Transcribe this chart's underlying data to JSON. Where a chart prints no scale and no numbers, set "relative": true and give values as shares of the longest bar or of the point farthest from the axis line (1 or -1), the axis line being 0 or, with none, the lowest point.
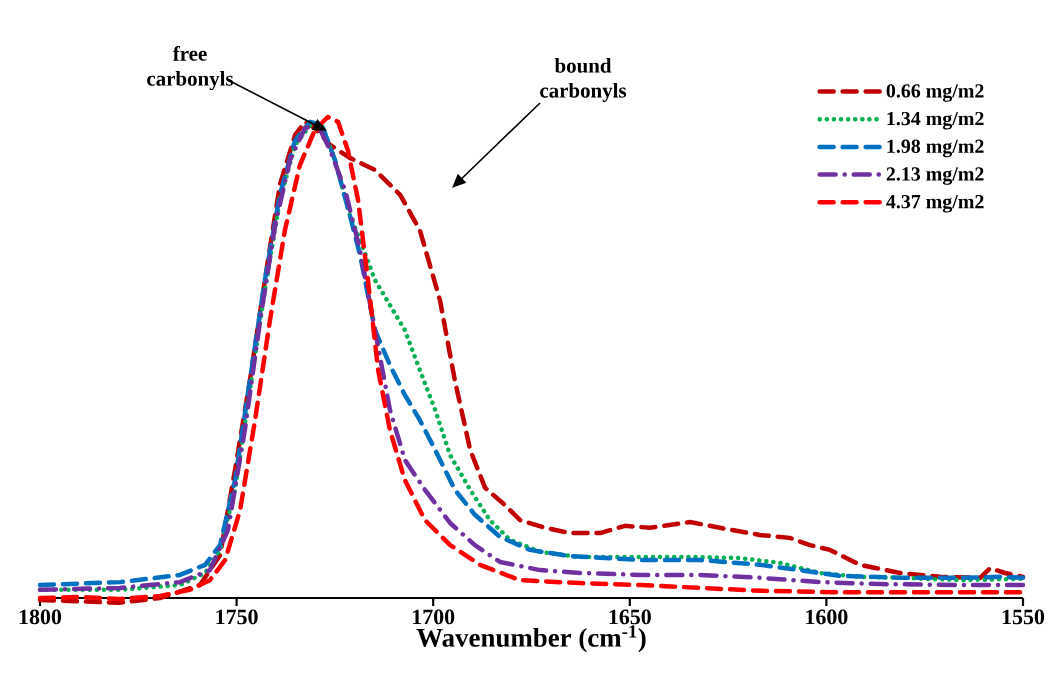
{
  "chart_data": {
    "type": "line",
    "relative": true,
    "xlabel": "Wavenumber (cm$^{-1}$)",
    "xlim": [
      1800,
      1550
    ],
    "xticks": [
      1800,
      1750,
      1700,
      1650,
      1600,
      1550
    ],
    "legend": "top right",
    "annotations": [
      "free carbonyls",
      "bound carbonyls"
    ],
    "series": [
      {
        "name": "0.66 mg/m2",
        "color": "#c00000",
        "line_style": "dashed",
        "x": [
          1800,
          1779.9,
          1769.5,
          1759.3,
          1754.2,
          1750.4,
          1746.6,
          1742.8,
          1739.0,
          1735.1,
          1732.6,
          1730.1,
          1726.2,
          1721.2,
          1714.8,
          1708.4,
          1703.4,
          1698.3,
          1694.5,
          1690.6,
          1686.8,
          1681.7,
          1677.9,
          1671.6,
          1665.2,
          1657.6,
          1651.2,
          1644.9,
          1634.7,
          1627.1,
          1616.9,
          1609.3,
          1604.2,
          1599.1,
          1591.5,
          1581.3,
          1571.1,
          1560.9,
          1558.4,
          1554.6,
          1550
        ],
        "values": [
          -0.004,
          -0.01,
          0,
          0.027,
          0.089,
          0.266,
          0.453,
          0.661,
          0.859,
          0.963,
          0.99,
          0.977,
          0.942,
          0.915,
          0.89,
          0.838,
          0.765,
          0.62,
          0.453,
          0.308,
          0.229,
          0.193,
          0.162,
          0.146,
          0.135,
          0.135,
          0.15,
          0.146,
          0.158,
          0.146,
          0.131,
          0.125,
          0.11,
          0.1,
          0.069,
          0.052,
          0.044,
          0.042,
          0.062,
          0.052,
          0.044
        ]
      },
      {
        "name": "1.34 mg/m2",
        "color": "#00b050",
        "line_style": "dotted",
        "x": [
          1800,
          1779.7,
          1764.4,
          1758.0,
          1754.2,
          1750.4,
          1746.6,
          1742.8,
          1739.0,
          1735.1,
          1731.3,
          1728.3,
          1725.0,
          1721.2,
          1718.6,
          1714.8,
          1711.0,
          1707.2,
          1703.4,
          1699.5,
          1695.7,
          1690.6,
          1685.6,
          1680.5,
          1672.8,
          1662.7,
          1647.4,
          1632.1,
          1621.9,
          1611.8,
          1601.6,
          1591.5,
          1581.3,
          1566.0,
          1550
        ],
        "values": [
          0.017,
          0.017,
          0.027,
          0.052,
          0.1,
          0.225,
          0.432,
          0.64,
          0.827,
          0.942,
          0.983,
          0.983,
          0.911,
          0.796,
          0.744,
          0.661,
          0.609,
          0.557,
          0.474,
          0.391,
          0.297,
          0.225,
          0.162,
          0.121,
          0.096,
          0.085,
          0.085,
          0.085,
          0.083,
          0.073,
          0.052,
          0.044,
          0.042,
          0.037,
          0.04
        ]
      },
      {
        "name": "1.98 mg/m2",
        "color": "#0070c0",
        "line_style": "dashed",
        "x": [
          1800,
          1779.7,
          1764.4,
          1758.0,
          1754.2,
          1750.4,
          1746.6,
          1742.8,
          1739.0,
          1735.1,
          1731.3,
          1728.3,
          1725.0,
          1721.2,
          1718.6,
          1714.8,
          1711.0,
          1707.2,
          1703.4,
          1699.5,
          1694.5,
          1689.4,
          1683.0,
          1675.4,
          1665.2,
          1647.4,
          1632.1,
          1616.9,
          1606.7,
          1596.5,
          1581.3,
          1566.0,
          1555.9,
          1550
        ],
        "values": [
          0.027,
          0.033,
          0.048,
          0.069,
          0.11,
          0.245,
          0.453,
          0.661,
          0.838,
          0.952,
          0.99,
          0.983,
          0.911,
          0.796,
          0.713,
          0.557,
          0.484,
          0.422,
          0.37,
          0.308,
          0.225,
          0.173,
          0.127,
          0.1,
          0.087,
          0.079,
          0.079,
          0.069,
          0.058,
          0.046,
          0.042,
          0.042,
          0.044,
          0.042
        ]
      },
      {
        "name": "2.13 mg/m2",
        "color": "#7030a0",
        "line_style": "dashdot",
        "x": [
          1800,
          1779.7,
          1764.4,
          1756.8,
          1752.2,
          1747.9,
          1744.0,
          1740.2,
          1736.4,
          1732.6,
          1729.3,
          1726.2,
          1722.4,
          1718.6,
          1714.8,
          1711.0,
          1707.2,
          1702.1,
          1695.7,
          1689.4,
          1683.0,
          1672.8,
          1662.7,
          1647.4,
          1632.1,
          1616.9,
          1601.6,
          1586.4,
          1566.0,
          1550
        ],
        "values": [
          0.017,
          0.021,
          0.033,
          0.058,
          0.141,
          0.349,
          0.578,
          0.775,
          0.911,
          0.977,
          0.983,
          0.931,
          0.848,
          0.723,
          0.557,
          0.391,
          0.287,
          0.225,
          0.156,
          0.11,
          0.075,
          0.058,
          0.052,
          0.048,
          0.048,
          0.042,
          0.033,
          0.029,
          0.027,
          0.027
        ]
      },
      {
        "name": "4.37 mg/m2",
        "color": "#ff0000",
        "line_style": "dashed",
        "x": [
          1800,
          1789.8,
          1779.7,
          1769.5,
          1761.9,
          1756.8,
          1752.9,
          1749.1,
          1745.3,
          1741.5,
          1737.7,
          1733.9,
          1730.1,
          1726.8,
          1724.2,
          1721.7,
          1719.1,
          1716.6,
          1714.0,
          1711.0,
          1707.2,
          1702.1,
          1695.7,
          1688.1,
          1677.9,
          1662.7,
          1647.4,
          1632.1,
          1616.9,
          1596.5,
          1581.3,
          1550
        ],
        "values": [
          0,
          0.002,
          -0.002,
          0.004,
          0.017,
          0.037,
          0.079,
          0.183,
          0.37,
          0.578,
          0.765,
          0.9,
          0.973,
          1.0,
          0.99,
          0.931,
          0.827,
          0.661,
          0.474,
          0.349,
          0.245,
          0.162,
          0.11,
          0.069,
          0.037,
          0.031,
          0.027,
          0.021,
          0.015,
          0.012,
          0.012,
          0.012
        ]
      }
    ]
  }
}
